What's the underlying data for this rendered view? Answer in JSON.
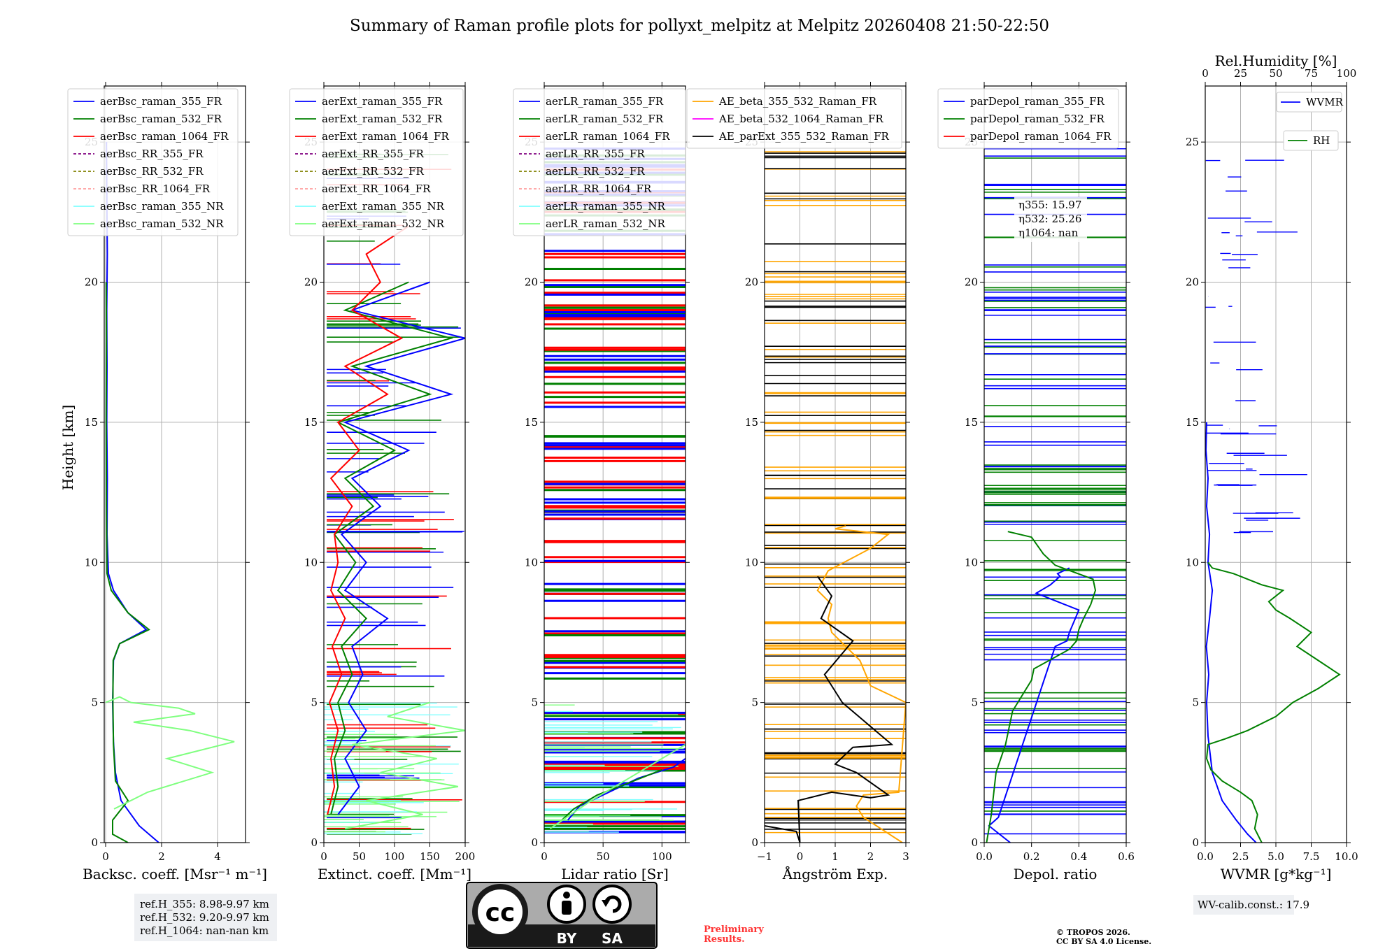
{
  "title": "Summary of Raman profile plots for pollyxt_melpitz at Melpitz 20260408 21:50-22:50",
  "y_axis": {
    "label": "Height [km]",
    "ylim": [
      0,
      27
    ],
    "ticks": [
      "0",
      "5",
      "10",
      "15",
      "20",
      "25"
    ]
  },
  "chart_data": [
    {
      "type": "line",
      "id": "bsc",
      "xlabel": "Backsc. coeff. [Msr⁻¹ m⁻¹]",
      "xlim": [
        -0.05,
        5
      ],
      "xticks": [
        "0",
        "2",
        "4"
      ],
      "legend": [
        "aerBsc_raman_355_FR",
        "aerBsc_raman_532_FR",
        "aerBsc_raman_1064_FR",
        "aerBsc_RR_355_FR",
        "aerBsc_RR_532_FR",
        "aerBsc_RR_1064_FR",
        "aerBsc_raman_355_NR",
        "aerBsc_raman_532_NR"
      ],
      "series": [
        {
          "name": "aerBsc_raman_355_FR",
          "x": [
            1.9,
            1.2,
            0.55,
            0.35,
            0.28,
            0.25,
            0.28,
            0.5,
            1.45,
            0.8,
            0.28,
            0.1,
            0.05,
            0.06,
            0.04,
            0.05,
            0.04,
            0.06,
            0.03
          ],
          "y": [
            0,
            0.6,
            1.5,
            2.5,
            3.6,
            5,
            6.5,
            7.1,
            7.6,
            8.2,
            9,
            9.6,
            11,
            13,
            15,
            17,
            19,
            21,
            25
          ]
        },
        {
          "name": "aerBsc_raman_532_FR",
          "x": [
            0.8,
            0.25,
            0.25,
            0.8,
            0.35,
            0.28,
            0.26,
            0.27,
            0.5,
            1.55,
            0.8,
            0.2,
            0.05,
            0.03,
            0.02,
            0.03,
            0.02
          ],
          "y": [
            0,
            0.3,
            0.8,
            1.5,
            2.2,
            3.5,
            5,
            6.5,
            7.1,
            7.6,
            8.2,
            9,
            9.6,
            12,
            15,
            18,
            20
          ]
        },
        {
          "name": "aerBsc_raman_532_NR",
          "x": [
            0.3,
            1.5,
            3.8,
            2.2,
            4.6,
            3.0,
            1.0,
            3.2,
            2.6,
            0.9,
            0.5,
            0.0
          ],
          "y": [
            1.2,
            1.8,
            2.5,
            3.0,
            3.6,
            4.0,
            4.3,
            4.6,
            4.8,
            5.0,
            5.2,
            5.0
          ]
        }
      ]
    },
    {
      "type": "line",
      "id": "ext",
      "xlabel": "Extinct. coeff. [Mm⁻¹]",
      "xlim": [
        0,
        200
      ],
      "xticks": [
        "0",
        "50",
        "100",
        "150",
        "200"
      ],
      "legend": [
        "aerExt_raman_355_FR",
        "aerExt_raman_532_FR",
        "aerExt_raman_1064_FR",
        "aerExt_RR_355_FR",
        "aerExt_RR_532_FR",
        "aerExt_RR_1064_FR",
        "aerExt_raman_355_NR",
        "aerExt_raman_532_NR"
      ],
      "series": [
        {
          "name": "aerExt_raman_355_FR",
          "x": [
            20,
            50,
            30,
            60,
            35,
            55,
            40,
            90,
            30,
            60,
            25,
            80,
            40,
            120,
            30,
            180,
            60,
            200,
            40,
            150
          ],
          "y": [
            1,
            2,
            3,
            4,
            5,
            6,
            7,
            8,
            9,
            10,
            11,
            12,
            13,
            14,
            15,
            16,
            17,
            18,
            19,
            20
          ]
        },
        {
          "name": "aerExt_raman_532_FR",
          "x": [
            10,
            20,
            15,
            30,
            20,
            40,
            25,
            60,
            20,
            45,
            15,
            70,
            30,
            100,
            20,
            150,
            40,
            180,
            30,
            120
          ],
          "y": [
            1,
            2,
            3,
            4,
            5,
            6,
            7,
            8,
            9,
            10,
            11,
            12,
            13,
            14,
            15,
            16,
            17,
            18,
            19,
            20
          ]
        },
        {
          "name": "aerExt_raman_1064_FR",
          "x": [
            5,
            15,
            10,
            20,
            8,
            25,
            12,
            30,
            10,
            20,
            15,
            40,
            10,
            50,
            20,
            90,
            30,
            110,
            40,
            80,
            60,
            120
          ],
          "y": [
            1,
            2,
            3,
            4,
            5,
            6,
            7,
            8,
            9,
            10,
            11,
            12,
            13,
            14,
            15,
            16,
            17,
            18,
            19,
            20,
            21,
            22
          ]
        },
        {
          "name": "aerExt_raman_532_NR",
          "x": [
            30,
            140,
            60,
            190,
            80,
            160,
            40,
            200,
            90,
            150
          ],
          "y": [
            0.5,
            1,
            1.5,
            2,
            2.5,
            3,
            3.5,
            4,
            4.5,
            5
          ]
        }
      ]
    },
    {
      "type": "line",
      "id": "lr",
      "xlabel": "Lidar ratio [Sr]",
      "xlim": [
        0,
        120
      ],
      "xticks": [
        "0",
        "50",
        "100"
      ],
      "legend": [
        "aerLR_raman_355_FR",
        "aerLR_raman_532_FR",
        "aerLR_raman_1064_FR",
        "aerLR_RR_355_FR",
        "aerLR_RR_532_FR",
        "aerLR_RR_1064_FR",
        "aerLR_raman_355_NR",
        "aerLR_raman_532_NR"
      ],
      "series": [
        {
          "name": "aerLR_raman_355_FR",
          "x": [
            20,
            30,
            55,
            80,
            110,
            120
          ],
          "y": [
            0.8,
            1.3,
            1.8,
            2.3,
            2.7,
            3.0
          ]
        },
        {
          "name": "aerLR_raman_532_FR",
          "x": [
            15,
            25,
            45,
            70,
            100
          ],
          "y": [
            0.8,
            1.2,
            1.7,
            2.1,
            2.6
          ]
        },
        {
          "name": "aerLR_raman_532_NR",
          "x": [
            5,
            40,
            80,
            120
          ],
          "y": [
            0.5,
            1.5,
            2.5,
            3.5
          ]
        }
      ]
    },
    {
      "type": "line",
      "id": "ae",
      "xlabel": "Ångström Exp.",
      "xlim": [
        -1,
        3
      ],
      "xticks": [
        "−1",
        "0",
        "1",
        "2",
        "3"
      ],
      "legend": [
        "AE_beta_355_532_Raman_FR",
        "AE_beta_532_1064_Raman_FR",
        "AE_parExt_355_532_Raman_FR"
      ],
      "series": [
        {
          "name": "AE_beta_355_532_Raman_FR",
          "x": [
            2.9,
            1.8,
            1.6,
            1.8,
            2.8,
            3.0,
            2.5,
            2.0,
            1.7,
            0.9,
            0.8,
            0.9,
            0.5,
            0.8,
            2.0,
            2.5,
            1.0,
            1.3
          ],
          "y": [
            0,
            0.9,
            1.3,
            1.7,
            1.8,
            5.0,
            5.3,
            5.6,
            6.5,
            7.5,
            8.0,
            8.5,
            9.0,
            9.7,
            10.5,
            11.0,
            11.2,
            11.3
          ]
        },
        {
          "name": "AE_parExt_355_532_Raman_FR",
          "x": [
            -1,
            -0.1,
            0.0,
            -0.05,
            0.9,
            2.0,
            2.5,
            1.6,
            1.0,
            1.5,
            2.6,
            1.2,
            0.7,
            1.5,
            0.6,
            0.9,
            0.5
          ],
          "y": [
            0.6,
            0.4,
            0.0,
            1.5,
            1.8,
            1.6,
            1.7,
            2.5,
            2.8,
            3.4,
            3.5,
            5.0,
            6.0,
            7.2,
            8.0,
            8.8,
            9.5
          ]
        }
      ]
    },
    {
      "type": "line",
      "id": "depol",
      "xlabel": "Depol. ratio",
      "xlim": [
        0,
        0.6
      ],
      "xticks": [
        "0.0",
        "0.2",
        "0.4",
        "0.6"
      ],
      "legend": [
        "parDepol_raman_355_FR",
        "parDepol_raman_532_FR",
        "parDepol_raman_1064_FR"
      ],
      "series": [
        {
          "name": "parDepol_raman_355_FR",
          "x": [
            0.11,
            0.02,
            0.06,
            0.3,
            0.35,
            0.36,
            0.38,
            0.4,
            0.34,
            0.22,
            0.28,
            0.32,
            0.31,
            0.36
          ],
          "y": [
            0,
            0.6,
            0.9,
            7.0,
            7.2,
            7.5,
            7.9,
            8.3,
            8.5,
            8.9,
            9.2,
            9.5,
            9.6,
            9.8
          ]
        },
        {
          "name": "parDepol_raman_532_FR",
          "x": [
            0.01,
            0.03,
            0.05,
            0.09,
            0.12,
            0.2,
            0.21,
            0.36,
            0.39,
            0.4,
            0.42,
            0.45,
            0.47,
            0.46,
            0.3,
            0.25,
            0.2,
            0.1
          ],
          "y": [
            0,
            1.0,
            2.5,
            3.5,
            4.7,
            5.8,
            6.2,
            6.9,
            7.2,
            7.6,
            8.0,
            8.5,
            9.0,
            9.4,
            9.9,
            10.3,
            10.9,
            11.1
          ]
        }
      ],
      "annotations": [
        "η355: 15.97",
        "η532: 25.26",
        "η1064: nan"
      ]
    },
    {
      "type": "line",
      "id": "wv",
      "xlabel": "WVMR [g*kg⁻¹]",
      "xlim": [
        0,
        10
      ],
      "xticks": [
        "0.0",
        "2.5",
        "5.0",
        "7.5",
        "10.0"
      ],
      "x2label": "Rel.Humidity [%]",
      "x2lim": [
        0,
        100
      ],
      "x2ticks": [
        "0",
        "25",
        "50",
        "75",
        "100"
      ],
      "legend": [
        "WVMR",
        "RH"
      ],
      "series": [
        {
          "name": "WVMR",
          "x": [
            3.6,
            3.0,
            2.2,
            1.2,
            0.5,
            0.2,
            0.1,
            0.25,
            0.08,
            0.3,
            0.5,
            0.2,
            0.3,
            0.1,
            0.2,
            0.05,
            0.1
          ],
          "y": [
            0,
            0.3,
            0.8,
            1.5,
            2.5,
            3.8,
            5,
            6,
            7,
            8,
            9,
            10,
            11,
            12,
            13,
            14,
            15
          ]
        },
        {
          "name": "RH",
          "x": [
            40,
            35,
            37,
            33,
            25,
            12,
            4,
            1,
            2,
            14,
            30,
            50,
            62,
            80,
            95,
            80,
            65,
            75,
            60,
            50,
            45,
            55,
            40,
            30,
            20,
            5,
            2
          ],
          "y": [
            0,
            0.5,
            1.0,
            1.5,
            1.8,
            2.2,
            2.6,
            3.0,
            3.5,
            3.7,
            4.0,
            4.5,
            5.0,
            5.5,
            6.0,
            6.5,
            7.0,
            7.5,
            8.0,
            8.3,
            8.6,
            9.0,
            9.2,
            9.4,
            9.6,
            9.8,
            10.0
          ]
        }
      ]
    }
  ],
  "info": {
    "ref_heights": [
      "ref.H_355: 8.98-9.97 km",
      "ref.H_532: 9.20-9.97 km",
      "ref.H_1064: nan-nan km"
    ],
    "wv_calib": "WV-calib.const.: 17.9",
    "preliminary": [
      "Preliminary",
      "Results."
    ],
    "copyright": [
      "© TROPOS 2026.",
      "CC BY SA 4.0 License."
    ],
    "license_badge": {
      "cc": "cc",
      "by": "BY",
      "sa": "SA"
    }
  },
  "colors": {
    "blue": "#0000ff",
    "green": "#008000",
    "red": "#ff0000",
    "purple": "#800080",
    "olive": "#808000",
    "salmon": "#ff9f9f",
    "cyan": "#7fffff",
    "lightgreen": "#7fff7f",
    "orange": "#ffa500",
    "magenta": "#ff00ff",
    "black": "#000000"
  }
}
